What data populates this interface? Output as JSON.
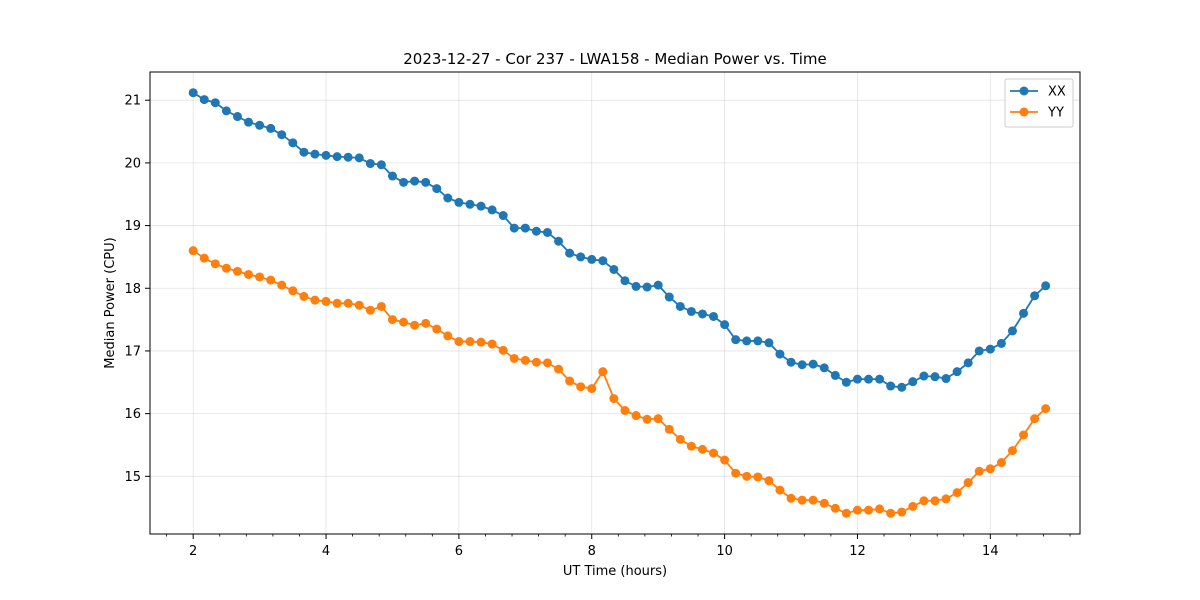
{
  "chart_data": {
    "type": "line",
    "title": "2023-12-27 - Cor 237 - LWA158 - Median Power vs. Time",
    "xlabel": "UT Time (hours)",
    "ylabel": "Median Power (CPU)",
    "xlim": [
      1.35,
      15.35
    ],
    "ylim": [
      14.08,
      21.45
    ],
    "xticks": [
      2,
      4,
      6,
      8,
      10,
      12,
      14
    ],
    "yticks": [
      15,
      16,
      17,
      18,
      19,
      20,
      21
    ],
    "grid": true,
    "legend_position": "top-right",
    "x": [
      2.0,
      2.167,
      2.333,
      2.5,
      2.667,
      2.833,
      3.0,
      3.167,
      3.333,
      3.5,
      3.667,
      3.833,
      4.0,
      4.167,
      4.333,
      4.5,
      4.667,
      4.833,
      5.0,
      5.167,
      5.333,
      5.5,
      5.667,
      5.833,
      6.0,
      6.167,
      6.333,
      6.5,
      6.667,
      6.833,
      7.0,
      7.167,
      7.333,
      7.5,
      7.667,
      7.833,
      8.0,
      8.167,
      8.333,
      8.5,
      8.667,
      8.833,
      9.0,
      9.167,
      9.333,
      9.5,
      9.667,
      9.833,
      10.0,
      10.167,
      10.333,
      10.5,
      10.667,
      10.833,
      11.0,
      11.167,
      11.333,
      11.5,
      11.667,
      11.833,
      12.0,
      12.167,
      12.333,
      12.5,
      12.667,
      12.833,
      13.0,
      13.167,
      13.333,
      13.5,
      13.667,
      13.833,
      14.0,
      14.167,
      14.333,
      14.5,
      14.667,
      14.833
    ],
    "series": [
      {
        "name": "XX",
        "color": "#1f77b4",
        "values": [
          21.12,
          21.01,
          20.96,
          20.83,
          20.74,
          20.65,
          20.6,
          20.55,
          20.45,
          20.32,
          20.17,
          20.14,
          20.12,
          20.1,
          20.09,
          20.08,
          19.99,
          19.97,
          19.79,
          19.69,
          19.71,
          19.69,
          19.59,
          19.44,
          19.37,
          19.34,
          19.31,
          19.25,
          19.16,
          18.96,
          18.96,
          18.91,
          18.89,
          18.75,
          18.56,
          18.5,
          18.46,
          18.44,
          18.3,
          18.12,
          18.03,
          18.02,
          18.05,
          17.86,
          17.71,
          17.63,
          17.59,
          17.55,
          17.42,
          17.18,
          17.16,
          17.16,
          17.13,
          16.95,
          16.82,
          16.78,
          16.79,
          16.73,
          16.61,
          16.5,
          16.55,
          16.55,
          16.55,
          16.44,
          16.42,
          16.51,
          16.6,
          16.59,
          16.56,
          16.67,
          16.81,
          17.0,
          17.03,
          17.12,
          17.32,
          17.6,
          17.88,
          18.04
        ]
      },
      {
        "name": "YY",
        "color": "#ff7f0e",
        "values": [
          18.6,
          18.48,
          18.39,
          18.32,
          18.27,
          18.22,
          18.18,
          18.13,
          18.05,
          17.96,
          17.87,
          17.81,
          17.79,
          17.76,
          17.76,
          17.73,
          17.65,
          17.71,
          17.5,
          17.46,
          17.41,
          17.44,
          17.35,
          17.24,
          17.15,
          17.15,
          17.14,
          17.11,
          17.01,
          16.88,
          16.85,
          16.82,
          16.81,
          16.71,
          16.52,
          16.43,
          16.4,
          16.67,
          16.24,
          16.05,
          15.97,
          15.91,
          15.92,
          15.75,
          15.59,
          15.48,
          15.43,
          15.37,
          15.26,
          15.05,
          15.0,
          14.99,
          14.93,
          14.78,
          14.65,
          14.62,
          14.62,
          14.57,
          14.49,
          14.41,
          14.46,
          14.46,
          14.48,
          14.41,
          14.43,
          14.52,
          14.61,
          14.61,
          14.64,
          14.74,
          14.9,
          15.08,
          15.12,
          15.22,
          15.41,
          15.66,
          15.92,
          16.08
        ]
      }
    ]
  }
}
